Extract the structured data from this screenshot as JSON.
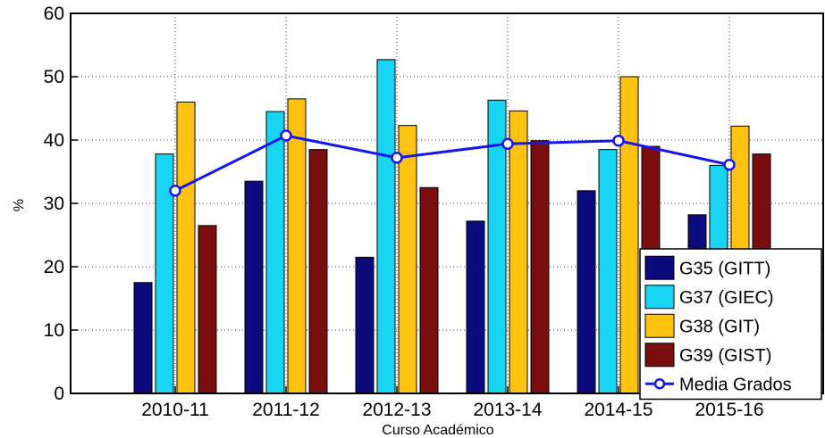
{
  "chart_data": {
    "type": "bar",
    "xlabel": "Curso Académico",
    "ylabel": "%",
    "ylim": [
      0,
      60
    ],
    "yticks": [
      0,
      10,
      20,
      30,
      40,
      50,
      60
    ],
    "grid": true,
    "legend_position": "bottom-right",
    "categories": [
      "2010-11",
      "2011-12",
      "2012-13",
      "2013-14",
      "2014-15",
      "2015-16"
    ],
    "series": [
      {
        "name": "G35 (GITT)",
        "color": "#0b0b7e",
        "values": [
          17.5,
          33.5,
          21.5,
          27.2,
          32.0,
          28.2
        ]
      },
      {
        "name": "G37 (GIEC)",
        "color": "#16d4f2",
        "values": [
          37.8,
          44.5,
          52.7,
          46.3,
          38.5,
          36.0
        ]
      },
      {
        "name": "G38 (GIT)",
        "color": "#ffc20e",
        "values": [
          46.0,
          46.5,
          42.3,
          44.6,
          50.0,
          42.2
        ]
      },
      {
        "name": "G39 (GIST)",
        "color": "#7a0d0d",
        "values": [
          26.5,
          38.5,
          32.5,
          39.9,
          39.0,
          37.8
        ]
      }
    ],
    "line_series": {
      "name": "Media Grados",
      "color": "#1515ee",
      "values": [
        32.0,
        40.7,
        37.2,
        39.4,
        39.9,
        36.1
      ]
    }
  }
}
